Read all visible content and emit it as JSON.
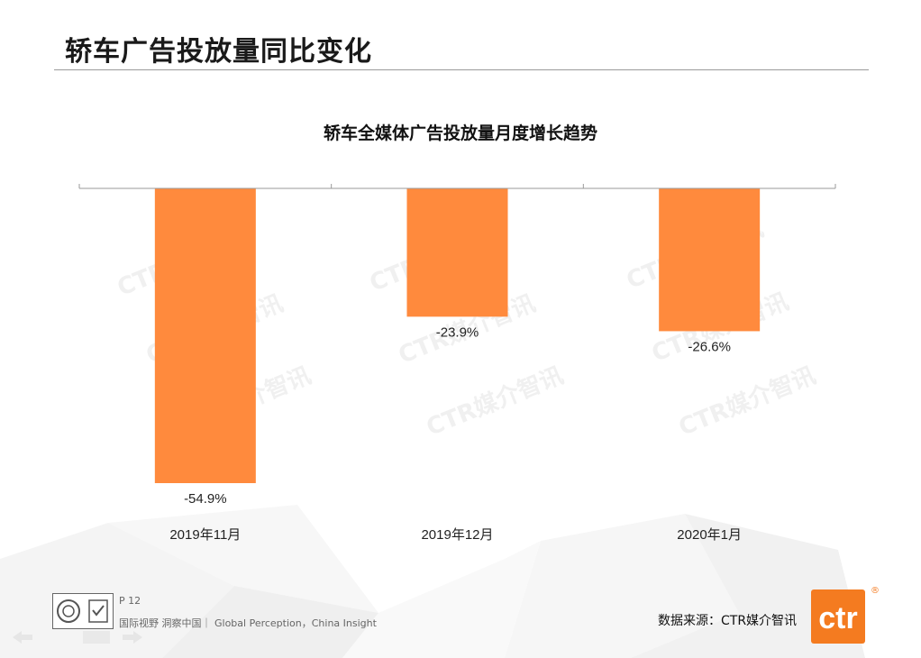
{
  "page": {
    "title": "轿车广告投放量同比变化",
    "page_number": "P 12",
    "slogan": "国际视野  洞察中国｜  Global  Perception，China  Insight",
    "source": "数据来源：CTR媒介智讯",
    "watermark": "CTR媒介智讯",
    "logo_text": "ctr",
    "logo_mark": "®"
  },
  "colors": {
    "bar": "#ff8a3d",
    "axis": "#9a9a9a",
    "logo": "#f47b20"
  },
  "chart_data": {
    "type": "bar",
    "title": "轿车全媒体广告投放量月度增长趋势",
    "categories": [
      "2019年11月",
      "2019年12月",
      "2020年1月"
    ],
    "values": [
      -54.9,
      -23.9,
      -26.6
    ],
    "value_labels": [
      "-54.9%",
      "-23.9%",
      "-26.6%"
    ],
    "ylim": [
      -60,
      0
    ],
    "grid": false,
    "legend": "none"
  }
}
